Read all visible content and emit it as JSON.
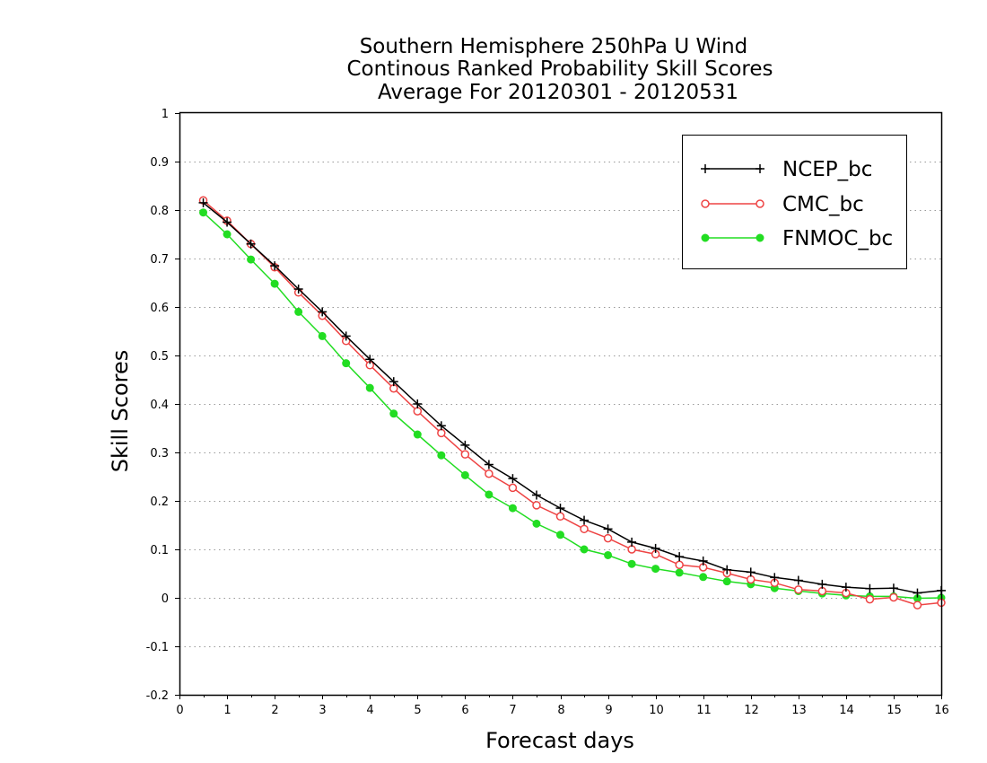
{
  "chart_data": {
    "type": "line",
    "title_lines": [
      "Southern Hemisphere 250hPa U Wind",
      "Continous Ranked Probability Skill Scores",
      "Average For 20120301 - 20120531"
    ],
    "xlabel": "Forecast days",
    "ylabel": "Skill Scores",
    "xlim": [
      0,
      16
    ],
    "ylim": [
      -0.2,
      1
    ],
    "x_ticks": [
      "0",
      "1",
      "2",
      "3",
      "4",
      "5",
      "6",
      "7",
      "8",
      "9",
      "10",
      "11",
      "12",
      "13",
      "14",
      "15",
      "16"
    ],
    "y_ticks": [
      "1",
      "0.9",
      "0.8",
      "0.7",
      "0.6",
      "0.5",
      "0.4",
      "0.3",
      "0.2",
      "0.1",
      "0",
      "-0.1",
      "-0.2"
    ],
    "y_tick_values": [
      1,
      0.9,
      0.8,
      0.7,
      0.6,
      0.5,
      0.4,
      0.3,
      0.2,
      0.1,
      0,
      -0.1,
      -0.2
    ],
    "grid": "horizontal-dotted",
    "legend_position": "top-right",
    "x": [
      0.5,
      1,
      1.5,
      2,
      2.5,
      3,
      3.5,
      4,
      4.5,
      5,
      5.5,
      6,
      6.5,
      7,
      7.5,
      8,
      8.5,
      9,
      9.5,
      10,
      10.5,
      11,
      11.5,
      12,
      12.5,
      13,
      13.5,
      14,
      14.5,
      15,
      15.5,
      16
    ],
    "series": [
      {
        "name": "NCEP_bc",
        "color": "#000000",
        "marker": "plus",
        "values": [
          0.815,
          0.775,
          0.73,
          0.685,
          0.637,
          0.59,
          0.54,
          0.492,
          0.446,
          0.4,
          0.355,
          0.315,
          0.275,
          0.246,
          0.212,
          0.185,
          0.16,
          0.142,
          0.115,
          0.102,
          0.085,
          0.076,
          0.058,
          0.053,
          0.042,
          0.036,
          0.028,
          0.022,
          0.019,
          0.02,
          0.01,
          0.015
        ]
      },
      {
        "name": "CMC_bc",
        "color": "#ee4444",
        "marker": "open-circle",
        "values": [
          0.82,
          0.778,
          0.73,
          0.682,
          0.63,
          0.582,
          0.53,
          0.48,
          0.432,
          0.385,
          0.34,
          0.296,
          0.256,
          0.227,
          0.191,
          0.168,
          0.142,
          0.123,
          0.1,
          0.09,
          0.068,
          0.063,
          0.051,
          0.038,
          0.031,
          0.017,
          0.014,
          0.01,
          -0.003,
          0.001,
          -0.015,
          -0.01
        ]
      },
      {
        "name": "FNMOC_bc",
        "color": "#22dd22",
        "marker": "filled-circle",
        "values": [
          0.795,
          0.75,
          0.698,
          0.648,
          0.59,
          0.54,
          0.484,
          0.433,
          0.38,
          0.337,
          0.294,
          0.253,
          0.213,
          0.185,
          0.153,
          0.13,
          0.1,
          0.088,
          0.07,
          0.06,
          0.052,
          0.043,
          0.034,
          0.028,
          0.02,
          0.014,
          0.009,
          0.005,
          0.003,
          0.003,
          -0.001,
          0
        ]
      }
    ]
  }
}
